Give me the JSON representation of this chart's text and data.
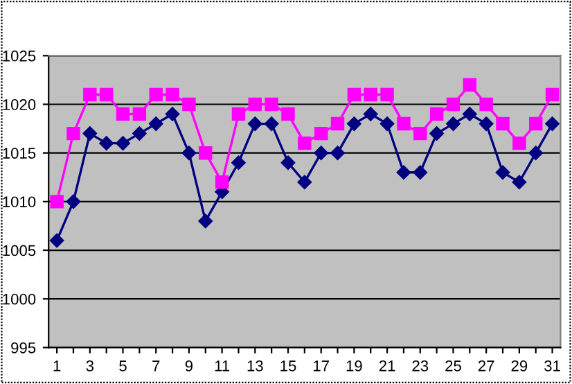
{
  "chart_data": {
    "type": "line",
    "categories": [
      "1",
      null,
      "3",
      null,
      "5",
      null,
      "7",
      null,
      "9",
      null,
      "11",
      null,
      "13",
      null,
      "15",
      null,
      "17",
      null,
      "19",
      null,
      "21",
      null,
      "23",
      null,
      "25",
      null,
      "27",
      null,
      "29",
      null,
      "31"
    ],
    "series": [
      {
        "color": "#000080",
        "marker": "diamond",
        "values": [
          1006,
          1010,
          1017,
          1016,
          1016,
          1017,
          1018,
          1019,
          1015,
          1008,
          1011,
          1014,
          1018,
          1018,
          1014,
          1012,
          1015,
          1015,
          1018,
          1019,
          1018,
          1013,
          1013,
          1017,
          1018,
          1019,
          1018,
          1013,
          1012,
          1015,
          1018
        ]
      },
      {
        "color": "#ff00ff",
        "marker": "square",
        "values": [
          1010,
          1017,
          1021,
          1021,
          1019,
          1019,
          1021,
          1021,
          1020,
          1015,
          1012,
          1019,
          1020,
          1020,
          1019,
          1016,
          1017,
          1018,
          1021,
          1021,
          1021,
          1018,
          1017,
          1019,
          1020,
          1022,
          1020,
          1018,
          1016,
          1018,
          1021
        ]
      }
    ],
    "ylim": [
      995,
      1025
    ],
    "yticks": [
      995,
      1000,
      1005,
      1010,
      1015,
      1020,
      1025
    ],
    "grid": "y",
    "legend": false
  }
}
